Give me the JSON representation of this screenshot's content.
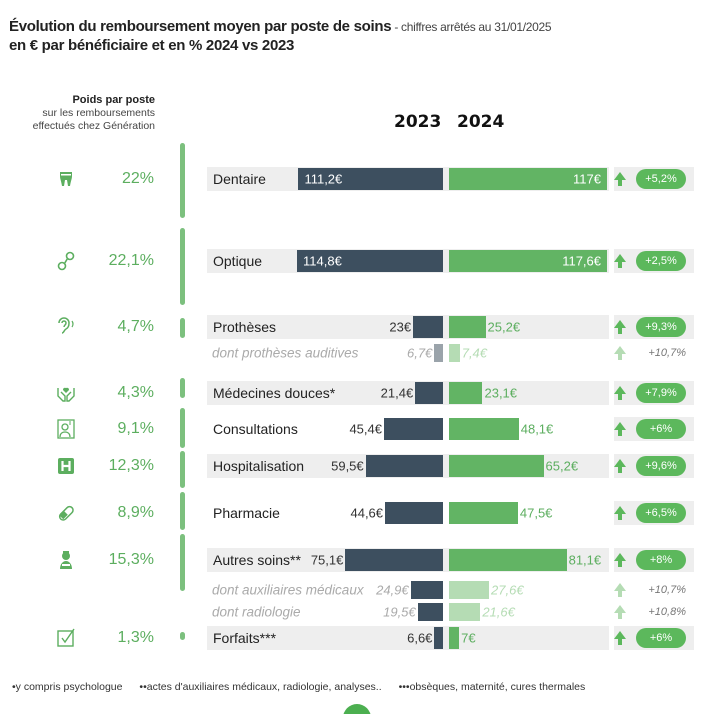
{
  "header": {
    "title": "Évolution du remboursement moyen par poste de soins",
    "subtitle": " - chiffres arrêtés au 31/01/2025",
    "title_line2": "en € par bénéficiaire et en % 2024 vs 2023"
  },
  "weight_header": {
    "title": "Poids par poste",
    "line1": "sur les remboursements",
    "line2": "effectués chez Génération"
  },
  "footnotes": [
    "•y compris psychologue",
    "••actes d'auxiliaires médicaux, radiologie, analyses..",
    "•••obsèques, maternité, cures thermales"
  ],
  "colors": {
    "bar_2023": "#3d4f5f",
    "bar_2024": "#62b464",
    "sub_2023": "#9aa3aa",
    "sub_2024": "#b5dcb4",
    "badge": "#5cb85c",
    "weight": "#5cae5f"
  },
  "chart_data": {
    "type": "bar",
    "orientation": "horizontal-butterfly",
    "title": "Évolution du remboursement moyen par poste de soins",
    "unit": "€",
    "series_labels": [
      "2023",
      "2024"
    ],
    "rows": [
      {
        "label": "Dentaire",
        "icon": "tooth-icon",
        "weight": "22%",
        "v2023": 111.2,
        "v2024": 117,
        "t2023": "111,2€",
        "t2024": "117€",
        "change": "+5,2%",
        "sub": false
      },
      {
        "label": "Optique",
        "icon": "glasses-icon",
        "weight": "22,1%",
        "v2023": 114.8,
        "v2024": 117.6,
        "t2023": "114,8€",
        "t2024": "117,6€",
        "change": "+2,5%",
        "sub": false
      },
      {
        "label": "Prothèses",
        "icon": "ear-icon",
        "weight": "4,7%",
        "v2023": 23,
        "v2024": 25.2,
        "t2023": "23€",
        "t2024": "25,2€",
        "change": "+9,3%",
        "sub": false
      },
      {
        "label": "dont prothèses auditives",
        "weight": "",
        "v2023": 6.7,
        "v2024": 7.4,
        "t2023": "6,7€",
        "t2024": "7,4€",
        "change": "+10,7%",
        "sub": true
      },
      {
        "label": "Médecines douces*",
        "icon": "hands-heart-icon",
        "weight": "4,3%",
        "v2023": 21.4,
        "v2024": 23.1,
        "t2023": "21,4€",
        "t2024": "23,1€",
        "change": "+7,9%",
        "sub": false
      },
      {
        "label": "Consultations",
        "icon": "doctor-icon",
        "weight": "9,1%",
        "v2023": 45.4,
        "v2024": 48.1,
        "t2023": "45,4€",
        "t2024": "48,1€",
        "change": "+6%",
        "sub": false
      },
      {
        "label": "Hospitalisation",
        "icon": "hospital-icon",
        "weight": "12,3%",
        "v2023": 59.5,
        "v2024": 65.2,
        "t2023": "59,5€",
        "t2024": "65,2€",
        "change": "+9,6%",
        "sub": false
      },
      {
        "label": "Pharmacie",
        "icon": "pill-icon",
        "weight": "8,9%",
        "v2023": 44.6,
        "v2024": 47.5,
        "t2023": "44,6€",
        "t2024": "47,5€",
        "change": "+6,5%",
        "sub": false
      },
      {
        "label": "Autres soins**",
        "icon": "nurse-icon",
        "weight": "15,3%",
        "v2023": 75.1,
        "v2024": 81.1,
        "t2023": "75,1€",
        "t2024": "81,1€",
        "change": "+8%",
        "sub": false
      },
      {
        "label": "dont auxiliaires médicaux",
        "weight": "",
        "v2023": 24.9,
        "v2024": 27.6,
        "t2023": "24,9€",
        "t2024": "27,6€",
        "change": "+10,7%",
        "sub": true
      },
      {
        "label": "dont radiologie",
        "weight": "",
        "v2023": 19.5,
        "v2024": 21.6,
        "t2023": "19,5€",
        "t2024": "21,6€",
        "change": "+10,8%",
        "sub": true
      },
      {
        "label": "Forfaits***",
        "icon": "checkbox-icon",
        "weight": "1,3%",
        "v2023": 6.6,
        "v2024": 7,
        "t2023": "6,6€",
        "t2024": "7€",
        "change": "+6%",
        "sub": false
      }
    ]
  }
}
